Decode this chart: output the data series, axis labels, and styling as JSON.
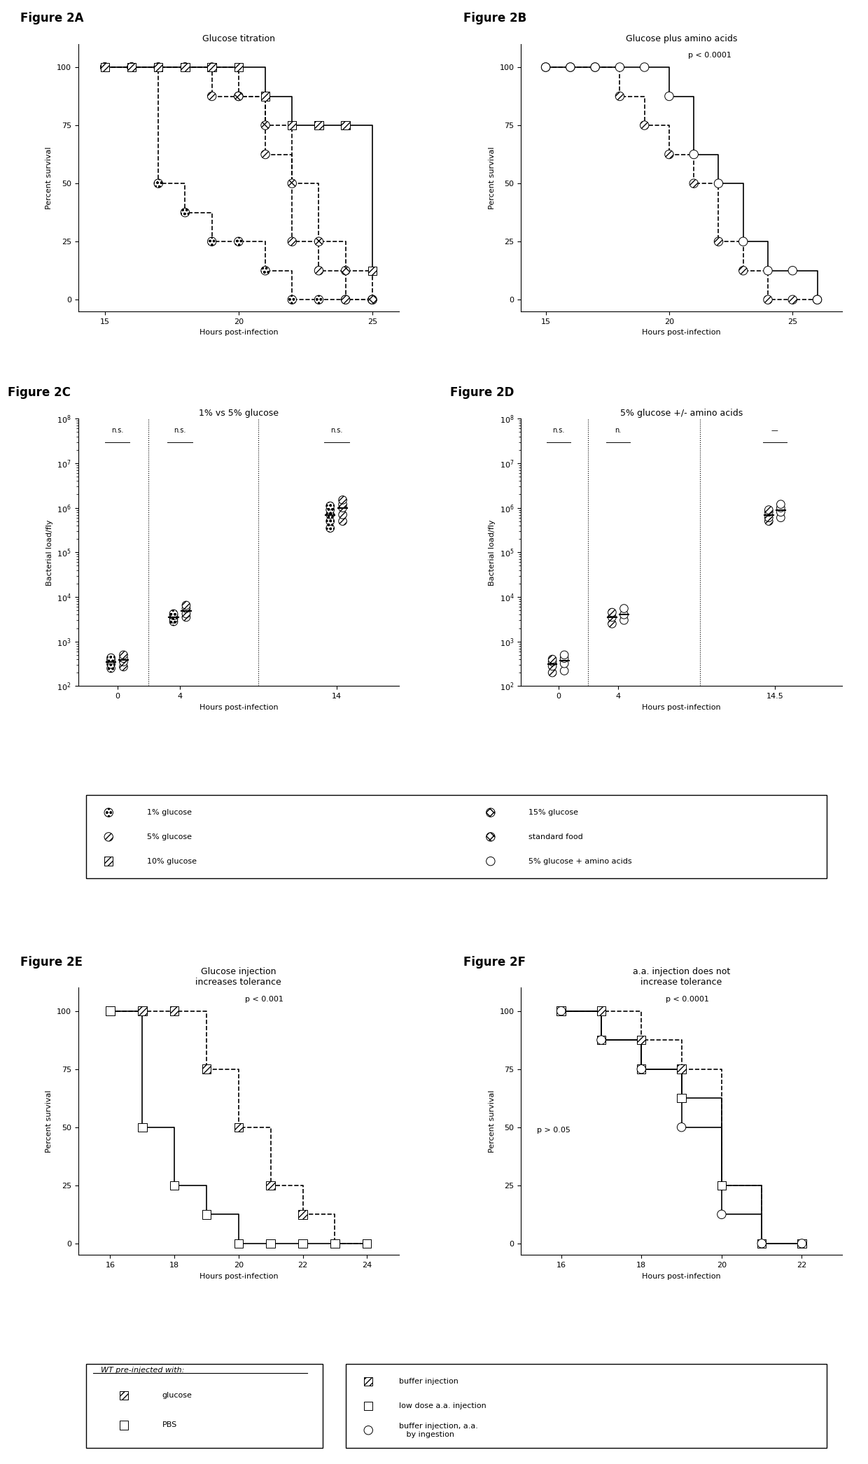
{
  "fig2A_title": "Glucose titration",
  "fig2A_label": "Figure 2A",
  "fig2B_title": "Glucose plus amino acids",
  "fig2B_label": "Figure 2B",
  "fig2B_pval": "p < 0.0001",
  "fig2C_title": "1% vs 5% glucose",
  "fig2C_label": "Figure 2C",
  "fig2D_title": "5% glucose +/- amino acids",
  "fig2D_label": "Figure 2D",
  "fig2E_title": "Glucose injection\nincreases tolerance",
  "fig2E_label": "Figure 2E",
  "fig2E_pval": "p < 0.001",
  "fig2F_title": "a.a. injection does not\nincrease tolerance",
  "fig2F_label": "Figure 2F",
  "fig2F_pval1": "p < 0.0001",
  "fig2F_pval2": "p > 0.05",
  "ylabel_survival": "Percent survival",
  "xlabel_hours": "Hours post-infection",
  "ylabel_bacterial": "Bacterial load/fly",
  "fig2A": {
    "series": [
      {
        "label": "1% glucose",
        "x": [
          15,
          16,
          17,
          18,
          19,
          20,
          21,
          22,
          23,
          24,
          25
        ],
        "y": [
          100,
          100,
          50,
          37.5,
          25,
          25,
          12.5,
          0,
          0,
          0,
          0
        ]
      },
      {
        "label": "5% glucose",
        "x": [
          15,
          16,
          17,
          18,
          19,
          20,
          21,
          22,
          23,
          24,
          25
        ],
        "y": [
          100,
          100,
          100,
          100,
          87.5,
          87.5,
          62.5,
          25,
          12.5,
          0,
          0
        ]
      },
      {
        "label": "10% glucose",
        "x": [
          15,
          16,
          17,
          18,
          19,
          20,
          21,
          22,
          23,
          24,
          25
        ],
        "y": [
          100,
          100,
          100,
          100,
          100,
          87.5,
          75,
          50,
          25,
          12.5,
          0
        ]
      },
      {
        "label": "15% glucose",
        "x": [
          15,
          16,
          17,
          18,
          19,
          20,
          21,
          22,
          23,
          24,
          25
        ],
        "y": [
          100,
          100,
          100,
          100,
          100,
          100,
          87.5,
          75,
          75,
          75,
          12.5
        ]
      }
    ],
    "hatches": [
      "sparse_circle",
      "medium_hatch",
      "dense_hatch",
      "cross_hatch"
    ],
    "xlim": [
      14,
      26
    ],
    "xticks": [
      15,
      20,
      25
    ],
    "ylim": [
      -5,
      110
    ],
    "yticks": [
      0,
      25,
      50,
      75,
      100
    ]
  },
  "fig2B": {
    "series": [
      {
        "label": "5% glucose",
        "x": [
          15,
          16,
          17,
          18,
          19,
          20,
          21,
          22,
          23,
          24,
          25,
          26
        ],
        "y": [
          100,
          100,
          100,
          87.5,
          75,
          62.5,
          50,
          25,
          12.5,
          0,
          0,
          0
        ]
      },
      {
        "label": "5% glucose + amino acids",
        "x": [
          15,
          16,
          17,
          18,
          19,
          20,
          21,
          22,
          23,
          24,
          25,
          26
        ],
        "y": [
          100,
          100,
          100,
          100,
          100,
          87.5,
          62.5,
          50,
          25,
          12.5,
          12.5,
          0
        ]
      }
    ],
    "hatches": [
      "medium_hatch",
      "open_circle"
    ],
    "xlim": [
      14,
      27
    ],
    "xticks": [
      15,
      20,
      25
    ],
    "ylim": [
      -5,
      110
    ],
    "yticks": [
      0,
      25,
      50,
      75,
      100
    ]
  },
  "fig2C": {
    "timepoints": [
      0,
      4,
      14
    ],
    "xtick_labels": [
      "0",
      "4",
      "14"
    ],
    "series": [
      {
        "label": "1% glucose",
        "hatch_type": "sparse_circle",
        "t0": [
          250,
          310,
          380,
          430
        ],
        "t4": [
          2800,
          3200,
          3800,
          4200
        ],
        "t14": [
          350000.0,
          500000.0,
          700000.0,
          900000.0,
          1100000.0
        ]
      },
      {
        "label": "5% glucose",
        "hatch_type": "medium_hatch",
        "t0": [
          270,
          350,
          420,
          500
        ],
        "t4": [
          3500,
          4200,
          5500,
          6500
        ],
        "t14": [
          500000.0,
          700000.0,
          1000000.0,
          1200000.0,
          1500000.0
        ]
      }
    ],
    "vlines": [
      2.0,
      9.0
    ],
    "ylim": [
      100.0,
      100000000.0
    ],
    "xlim": [
      -2.5,
      18
    ]
  },
  "fig2D": {
    "timepoints": [
      0,
      4,
      14.5
    ],
    "xtick_labels": [
      "0",
      "4",
      "14.5"
    ],
    "series": [
      {
        "label": "5% glucose",
        "hatch_type": "medium_hatch",
        "t0": [
          200,
          280,
          350,
          400
        ],
        "t4": [
          2500,
          3500,
          4500
        ],
        "t14": [
          500000.0,
          600000.0,
          800000.0,
          900000.0
        ]
      },
      {
        "label": "5% glucose + amino acids",
        "hatch_type": "open_circle",
        "t0": [
          220,
          320,
          420,
          500
        ],
        "t4": [
          3000,
          4000,
          5500
        ],
        "t14": [
          600000.0,
          800000.0,
          1000000.0,
          1200000.0
        ]
      }
    ],
    "vlines": [
      2.0,
      9.5
    ],
    "ylim": [
      100.0,
      100000000.0
    ],
    "xlim": [
      -2.5,
      19
    ]
  },
  "fig2E": {
    "series": [
      {
        "label": "glucose",
        "x": [
          16,
          17,
          18,
          19,
          20,
          21,
          22,
          23,
          24
        ],
        "y": [
          100,
          100,
          100,
          75,
          50,
          25,
          12.5,
          0,
          0
        ]
      },
      {
        "label": "PBS",
        "x": [
          16,
          17,
          18,
          19,
          20,
          21,
          22,
          23,
          24
        ],
        "y": [
          100,
          50,
          25,
          12.5,
          0,
          0,
          0,
          0,
          0
        ]
      }
    ],
    "hatches": [
      "dense_hatch",
      "open_square"
    ],
    "xlim": [
      15,
      25
    ],
    "xticks": [
      16,
      18,
      20,
      22,
      24
    ],
    "ylim": [
      -5,
      110
    ],
    "yticks": [
      0,
      25,
      50,
      75,
      100
    ]
  },
  "fig2F": {
    "series": [
      {
        "label": "buffer injection",
        "x": [
          16,
          17,
          18,
          19,
          20,
          21,
          22
        ],
        "y": [
          100,
          100,
          87.5,
          75,
          25,
          0,
          0
        ],
        "marker": "square"
      },
      {
        "label": "low dose a.a. injection",
        "x": [
          16,
          17,
          18,
          19,
          20,
          21,
          22
        ],
        "y": [
          100,
          87.5,
          75,
          62.5,
          25,
          0,
          0
        ],
        "marker": "square"
      },
      {
        "label": "buffer injection, a.a. by ingestion",
        "x": [
          16,
          17,
          18,
          19,
          20,
          21,
          22
        ],
        "y": [
          100,
          87.5,
          75,
          50,
          12.5,
          0,
          0
        ],
        "marker": "circle"
      }
    ],
    "hatches": [
      "dense_hatch",
      "open_square",
      "open_circle"
    ],
    "xlim": [
      15,
      23
    ],
    "xticks": [
      16,
      18,
      20,
      22
    ],
    "ylim": [
      -5,
      110
    ],
    "yticks": [
      0,
      25,
      50,
      75,
      100
    ]
  }
}
